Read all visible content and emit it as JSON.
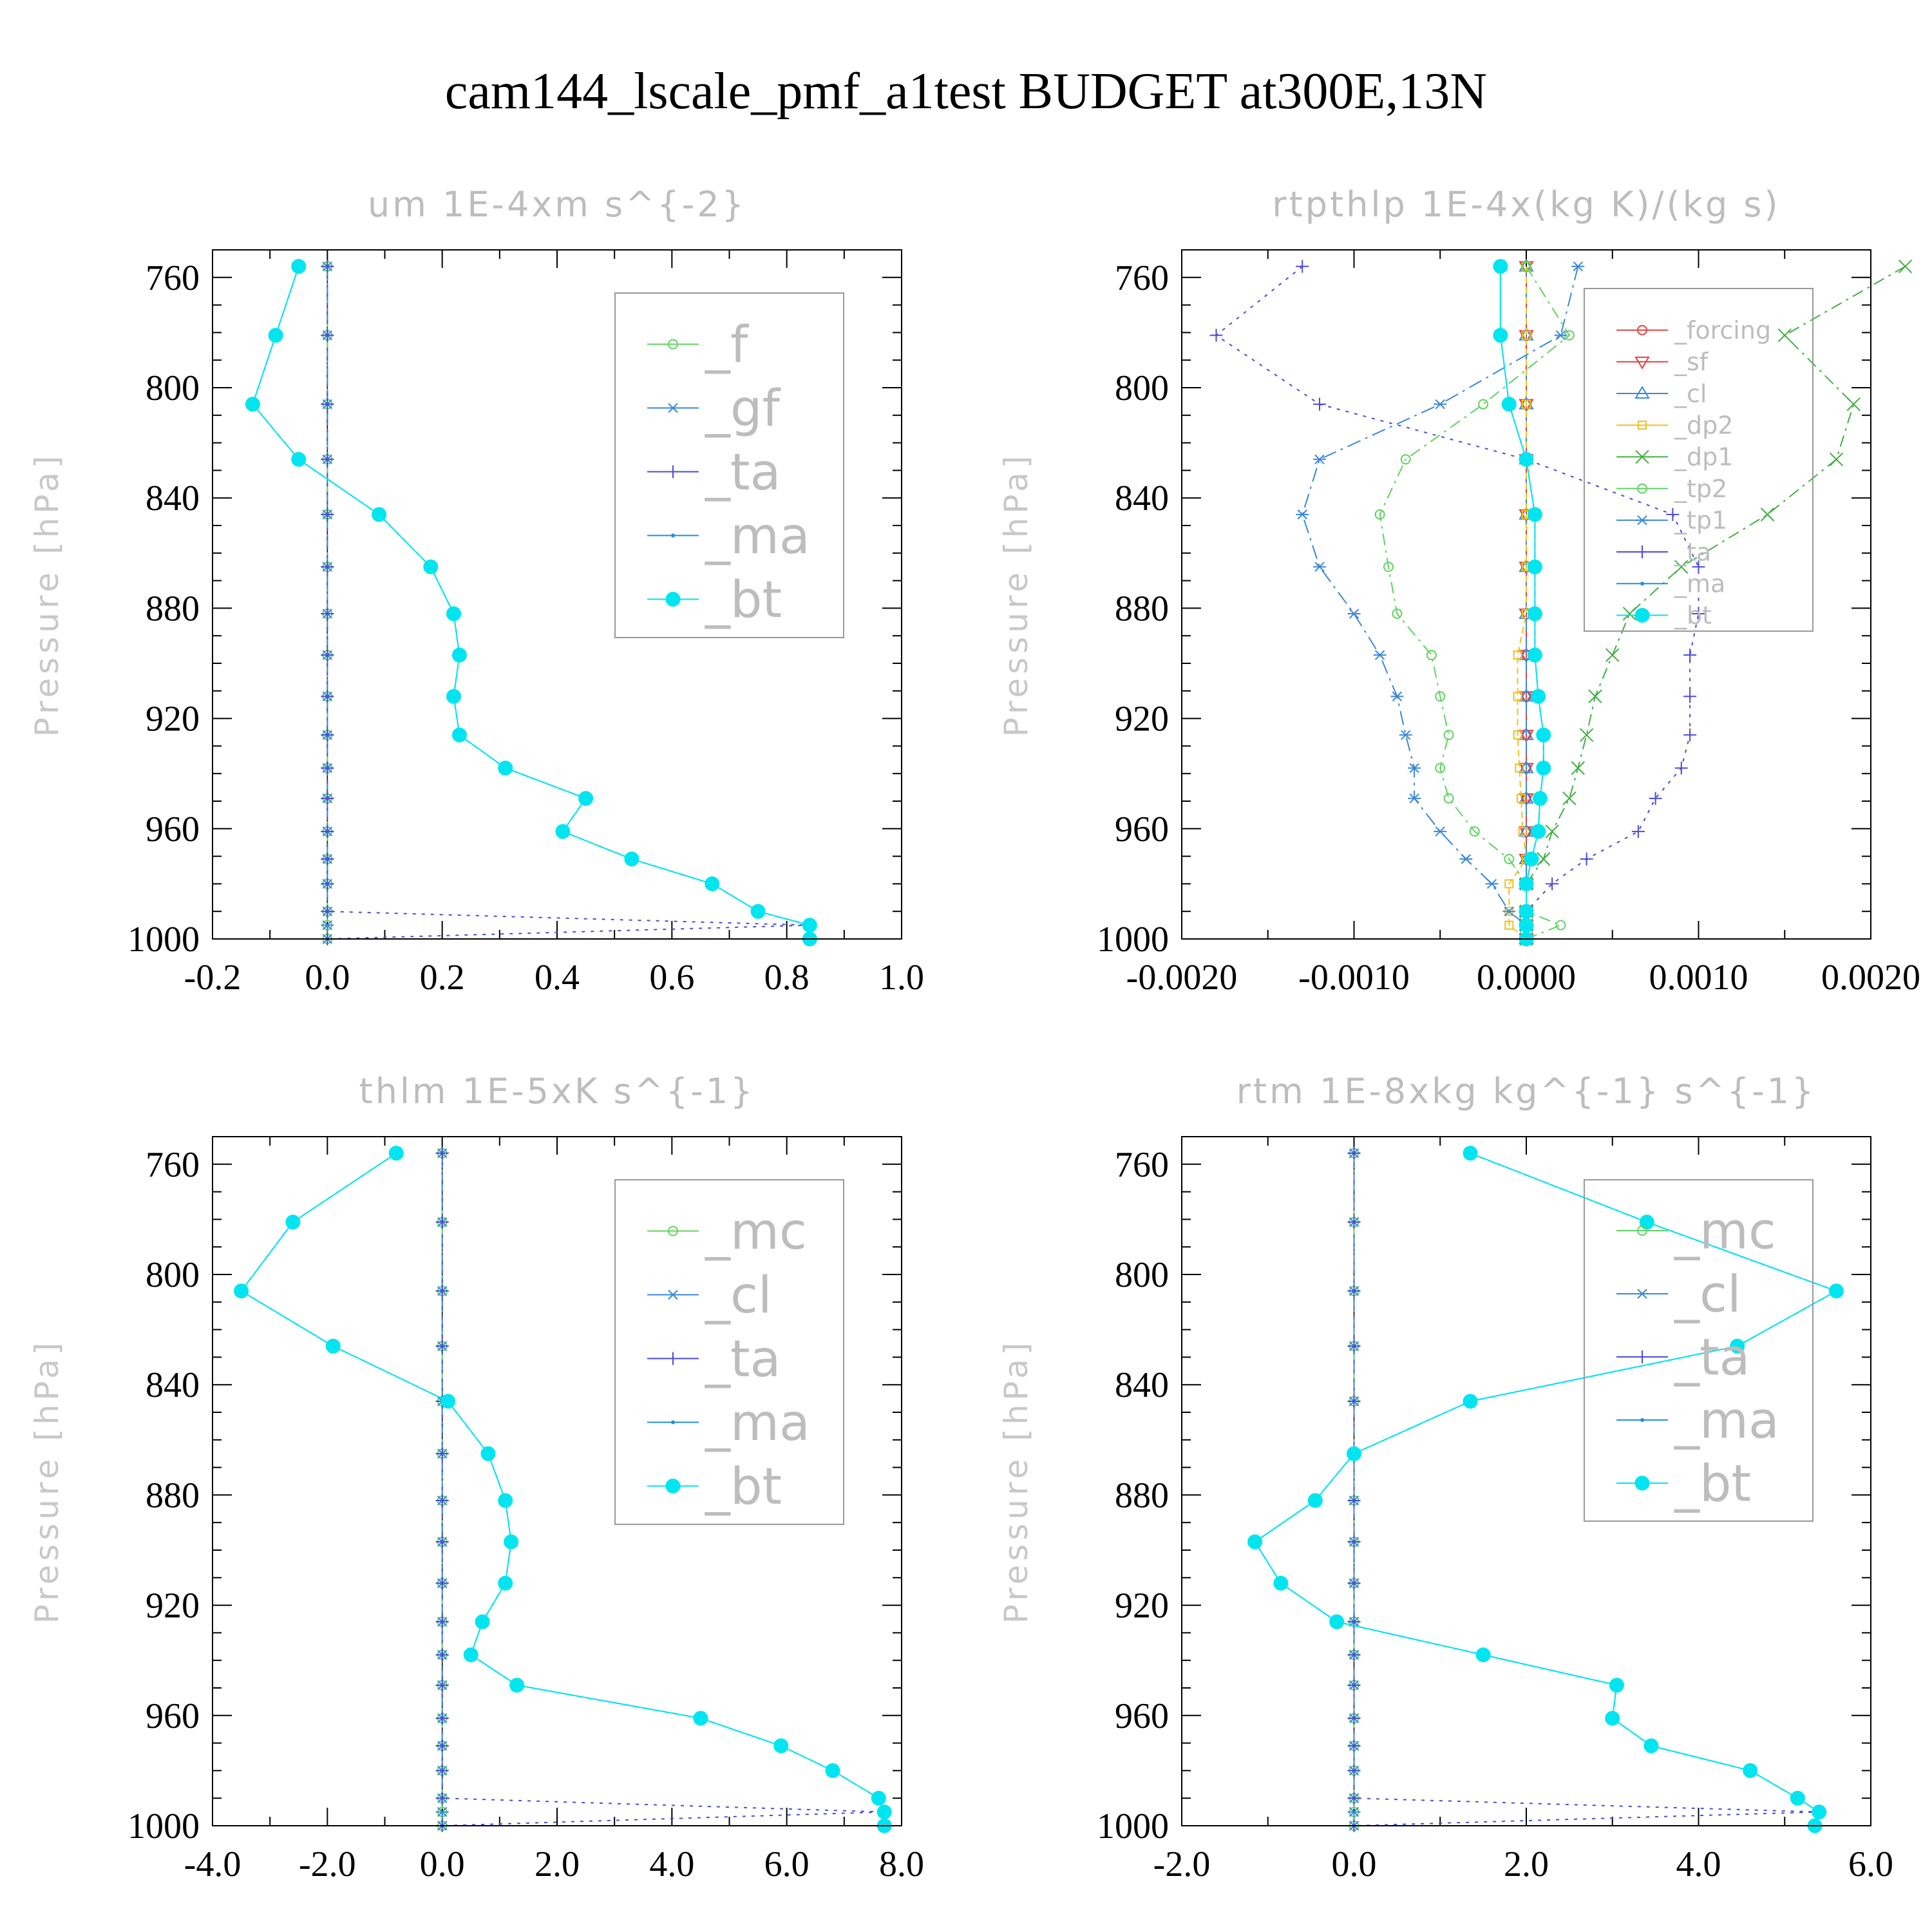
{
  "figure": {
    "title": "cam144_lscale_pmf_a1test  BUDGET at300E,13N",
    "ylabel": "Pressure [hPa]"
  },
  "colors": {
    "_f": "#5fd35f",
    "_gf": "#3a88d8",
    "_ta": "#4a4ad8",
    "_ma": "#1f8fe0",
    "_bt": "#00e5f0",
    "_mc": "#5fd35f",
    "_cl": "#3a88d8",
    "_forcing": "#e04040",
    "_sf": "#e04040",
    "_dp2": "#f0c020",
    "_dp1": "#40b040",
    "_tp2": "#5fd35f",
    "_tp1": "#3a88d8"
  },
  "chart_data": [
    {
      "type": "line",
      "title": "um  1E-4xm s^{-2}",
      "ylabel": "Pressure [hPa]",
      "xlim": [
        -0.2,
        1.0
      ],
      "xticks": [
        "-0.2",
        "0.0",
        "0.2",
        "0.4",
        "0.6",
        "0.8",
        "1.0"
      ],
      "ylim": [
        1000,
        750
      ],
      "yticks": [
        "760",
        "800",
        "840",
        "880",
        "920",
        "960",
        "1000"
      ],
      "legend": [
        "_f",
        "_gf",
        "_ta",
        "_ma",
        "_bt"
      ],
      "legend_font": 78,
      "pressure": [
        756,
        781,
        806,
        826,
        846,
        865,
        882,
        897,
        912,
        926,
        938,
        949,
        961,
        971,
        980,
        990,
        995,
        1000
      ],
      "series": [
        {
          "name": "_f",
          "marker": "circle",
          "values": [
            0,
            0,
            0,
            0,
            0,
            0,
            0,
            0,
            0,
            0,
            0,
            0,
            0,
            0,
            0,
            0,
            0,
            0
          ]
        },
        {
          "name": "_gf",
          "marker": "star",
          "values": [
            0,
            0,
            0,
            0,
            0,
            0,
            0,
            0,
            0,
            0,
            0,
            0,
            0,
            0,
            0,
            0,
            0,
            0
          ]
        },
        {
          "name": "_ta",
          "marker": "plus",
          "values": [
            0,
            0,
            0,
            0,
            0,
            0,
            0,
            0,
            0,
            0,
            0,
            0,
            0,
            0,
            0,
            0,
            0.84,
            0
          ]
        },
        {
          "name": "_ma",
          "marker": "dot",
          "values": [
            -0.05,
            -0.09,
            -0.13,
            -0.05,
            0.09,
            0.18,
            0.22,
            0.23,
            0.22,
            0.23,
            0.31,
            0.45,
            0.41,
            0.53,
            0.67,
            0.75,
            0.84,
            0.84
          ]
        },
        {
          "name": "_bt",
          "marker": "filled",
          "values": [
            -0.05,
            -0.09,
            -0.13,
            -0.05,
            0.09,
            0.18,
            0.22,
            0.23,
            0.22,
            0.23,
            0.31,
            0.45,
            0.41,
            0.53,
            0.67,
            0.75,
            0.84,
            0.84
          ]
        }
      ]
    },
    {
      "type": "line",
      "title": "rtpthlp  1E-4x(kg K)/(kg s)",
      "ylabel": "Pressure [hPa]",
      "xlim": [
        -0.002,
        0.002
      ],
      "xticks": [
        "-0.0020",
        "-0.0010",
        "0.0000",
        "0.0010",
        "0.0020"
      ],
      "ylim": [
        1000,
        750
      ],
      "yticks": [
        "760",
        "800",
        "840",
        "880",
        "920",
        "960",
        "1000"
      ],
      "legend": [
        "_forcing",
        "_sf",
        "_cl",
        "_dp2",
        "_dp1",
        "_tp2",
        "_tp1",
        "_ta",
        "_ma",
        "_bt"
      ],
      "legend_font": 38,
      "pressure": [
        756,
        781,
        806,
        826,
        846,
        865,
        882,
        897,
        912,
        926,
        938,
        949,
        961,
        971,
        980,
        990,
        995,
        1000
      ],
      "series": [
        {
          "name": "_forcing",
          "marker": "circle",
          "values": [
            0,
            0,
            0,
            0,
            0,
            0,
            0,
            0,
            0,
            0,
            0,
            0,
            0,
            0,
            0,
            0,
            0,
            0
          ]
        },
        {
          "name": "_sf",
          "marker": "tri-down",
          "values": [
            0,
            0,
            0,
            0,
            0,
            0,
            0,
            0,
            0,
            0,
            0,
            0,
            0,
            0,
            0,
            0,
            0,
            0
          ]
        },
        {
          "name": "_cl",
          "marker": "tri-up",
          "values": [
            0,
            0,
            0,
            0,
            0,
            0,
            0,
            0,
            0,
            0,
            0,
            0,
            0,
            0,
            0,
            0,
            0,
            0
          ]
        },
        {
          "name": "_dp2",
          "marker": "square",
          "values": [
            0,
            0,
            0,
            0,
            0,
            0,
            0,
            -5e-05,
            -5e-05,
            -5e-05,
            -4e-05,
            -3e-05,
            -2e-05,
            0,
            -0.0001,
            -0.0001,
            -0.0001,
            0
          ]
        },
        {
          "name": "_dp1",
          "marker": "x",
          "values": [
            0.0022,
            0.0015,
            0.0019,
            0.0018,
            0.0014,
            0.0009,
            0.0006,
            0.0005,
            0.0004,
            0.00035,
            0.0003,
            0.00025,
            0.00015,
            0.0001,
            0,
            0,
            0,
            0
          ]
        },
        {
          "name": "_tp2",
          "marker": "circle",
          "values": [
            0,
            0.00025,
            -0.00025,
            -0.0007,
            -0.00085,
            -0.0008,
            -0.00075,
            -0.00055,
            -0.0005,
            -0.00045,
            -0.0005,
            -0.00045,
            -0.0003,
            -0.0001,
            0,
            0,
            0.0002,
            0
          ]
        },
        {
          "name": "_tp1",
          "marker": "star",
          "values": [
            0.0003,
            0.0002,
            -0.0005,
            -0.0012,
            -0.0013,
            -0.0012,
            -0.001,
            -0.00085,
            -0.00075,
            -0.0007,
            -0.00065,
            -0.00065,
            -0.0005,
            -0.00035,
            -0.0002,
            -0.0001,
            0,
            0
          ]
        },
        {
          "name": "_ta",
          "marker": "plus",
          "values": [
            -0.0013,
            -0.0018,
            -0.0012,
            0,
            0.00085,
            0.001,
            0.001,
            0.00095,
            0.00095,
            0.00095,
            0.0009,
            0.00075,
            0.00065,
            0.00035,
            0.00015,
            0,
            0,
            0
          ]
        },
        {
          "name": "_ma",
          "marker": "dot",
          "values": [
            -0.00015,
            -0.00015,
            -0.0001,
            0,
            5e-05,
            5e-05,
            5e-05,
            5e-05,
            7e-05,
            0.0001,
            0.0001,
            8e-05,
            7e-05,
            3e-05,
            0,
            0,
            0,
            0
          ]
        },
        {
          "name": "_bt",
          "marker": "filled",
          "values": [
            -0.00015,
            -0.00015,
            -0.0001,
            0,
            5e-05,
            5e-05,
            5e-05,
            5e-05,
            7e-05,
            0.0001,
            0.0001,
            8e-05,
            7e-05,
            3e-05,
            0,
            0,
            0,
            0
          ]
        }
      ]
    },
    {
      "type": "line",
      "title": "thlm  1E-5xK s^{-1}",
      "ylabel": "Pressure [hPa]",
      "xlim": [
        -4.0,
        8.0
      ],
      "xticks": [
        "-4.0",
        "-2.0",
        "0.0",
        "2.0",
        "4.0",
        "6.0",
        "8.0"
      ],
      "ylim": [
        1000,
        750
      ],
      "yticks": [
        "760",
        "800",
        "840",
        "880",
        "920",
        "960",
        "1000"
      ],
      "legend": [
        "_mc",
        "_cl",
        "_ta",
        "_ma",
        "_bt"
      ],
      "legend_font": 78,
      "pressure": [
        756,
        781,
        806,
        826,
        846,
        865,
        882,
        897,
        912,
        926,
        938,
        949,
        961,
        971,
        980,
        990,
        995,
        1000
      ],
      "series": [
        {
          "name": "_mc",
          "marker": "circle",
          "values": [
            0,
            0,
            0,
            0,
            0,
            0,
            0,
            0,
            0,
            0,
            0,
            0,
            0,
            0,
            0,
            0,
            0,
            0
          ]
        },
        {
          "name": "_cl",
          "marker": "star",
          "values": [
            0,
            0,
            0,
            0,
            0,
            0,
            0,
            0,
            0,
            0,
            0,
            0,
            0,
            0,
            0,
            0,
            0,
            0
          ]
        },
        {
          "name": "_ta",
          "marker": "plus",
          "values": [
            0,
            0,
            0,
            0,
            0,
            0,
            0,
            0,
            0,
            0,
            0,
            0,
            0,
            0,
            0,
            0,
            7.7,
            0
          ]
        },
        {
          "name": "_ma",
          "marker": "dot",
          "values": [
            -0.8,
            -2.6,
            -3.5,
            -1.9,
            0.1,
            0.8,
            1.1,
            1.2,
            1.1,
            0.7,
            0.5,
            1.3,
            4.5,
            5.9,
            6.8,
            7.6,
            7.7,
            7.7
          ]
        },
        {
          "name": "_bt",
          "marker": "filled",
          "values": [
            -0.8,
            -2.6,
            -3.5,
            -1.9,
            0.1,
            0.8,
            1.1,
            1.2,
            1.1,
            0.7,
            0.5,
            1.3,
            4.5,
            5.9,
            6.8,
            7.6,
            7.7,
            7.7
          ]
        }
      ]
    },
    {
      "type": "line",
      "title": "rtm  1E-8xkg kg^{-1} s^{-1}",
      "ylabel": "Pressure [hPa]",
      "xlim": [
        -2.0,
        6.0
      ],
      "xticks": [
        "-2.0",
        "0.0",
        "2.0",
        "4.0",
        "6.0"
      ],
      "ylim": [
        1000,
        750
      ],
      "yticks": [
        "760",
        "800",
        "840",
        "880",
        "920",
        "960",
        "1000"
      ],
      "legend": [
        "_mc",
        "_cl",
        "_ta",
        "_ma",
        "_bt"
      ],
      "legend_font": 78,
      "pressure": [
        756,
        781,
        806,
        826,
        846,
        865,
        882,
        897,
        912,
        926,
        938,
        949,
        961,
        971,
        980,
        990,
        995,
        1000
      ],
      "series": [
        {
          "name": "_mc",
          "marker": "circle",
          "values": [
            0,
            0,
            0,
            0,
            0,
            0,
            0,
            0,
            0,
            0,
            0,
            0,
            0,
            0,
            0,
            0,
            0,
            0
          ]
        },
        {
          "name": "_cl",
          "marker": "star",
          "values": [
            0,
            0,
            0,
            0,
            0,
            0,
            0,
            0,
            0,
            0,
            0,
            0,
            0,
            0,
            0,
            0,
            0,
            0
          ]
        },
        {
          "name": "_ta",
          "marker": "plus",
          "values": [
            0,
            0,
            0,
            0,
            0,
            0,
            0,
            0,
            0,
            0,
            0,
            0,
            0,
            0,
            0,
            0,
            5.4,
            0
          ]
        },
        {
          "name": "_ma",
          "marker": "dot",
          "values": [
            1.35,
            3.4,
            5.6,
            4.45,
            1.35,
            0,
            -0.45,
            -1.15,
            -0.85,
            -0.2,
            1.5,
            3.05,
            3.0,
            3.45,
            4.6,
            5.15,
            5.4,
            5.35
          ]
        },
        {
          "name": "_bt",
          "marker": "filled",
          "values": [
            1.35,
            3.4,
            5.6,
            4.45,
            1.35,
            0,
            -0.45,
            -1.15,
            -0.85,
            -0.2,
            1.5,
            3.05,
            3.0,
            3.45,
            4.6,
            5.15,
            5.4,
            5.35
          ]
        }
      ]
    }
  ]
}
